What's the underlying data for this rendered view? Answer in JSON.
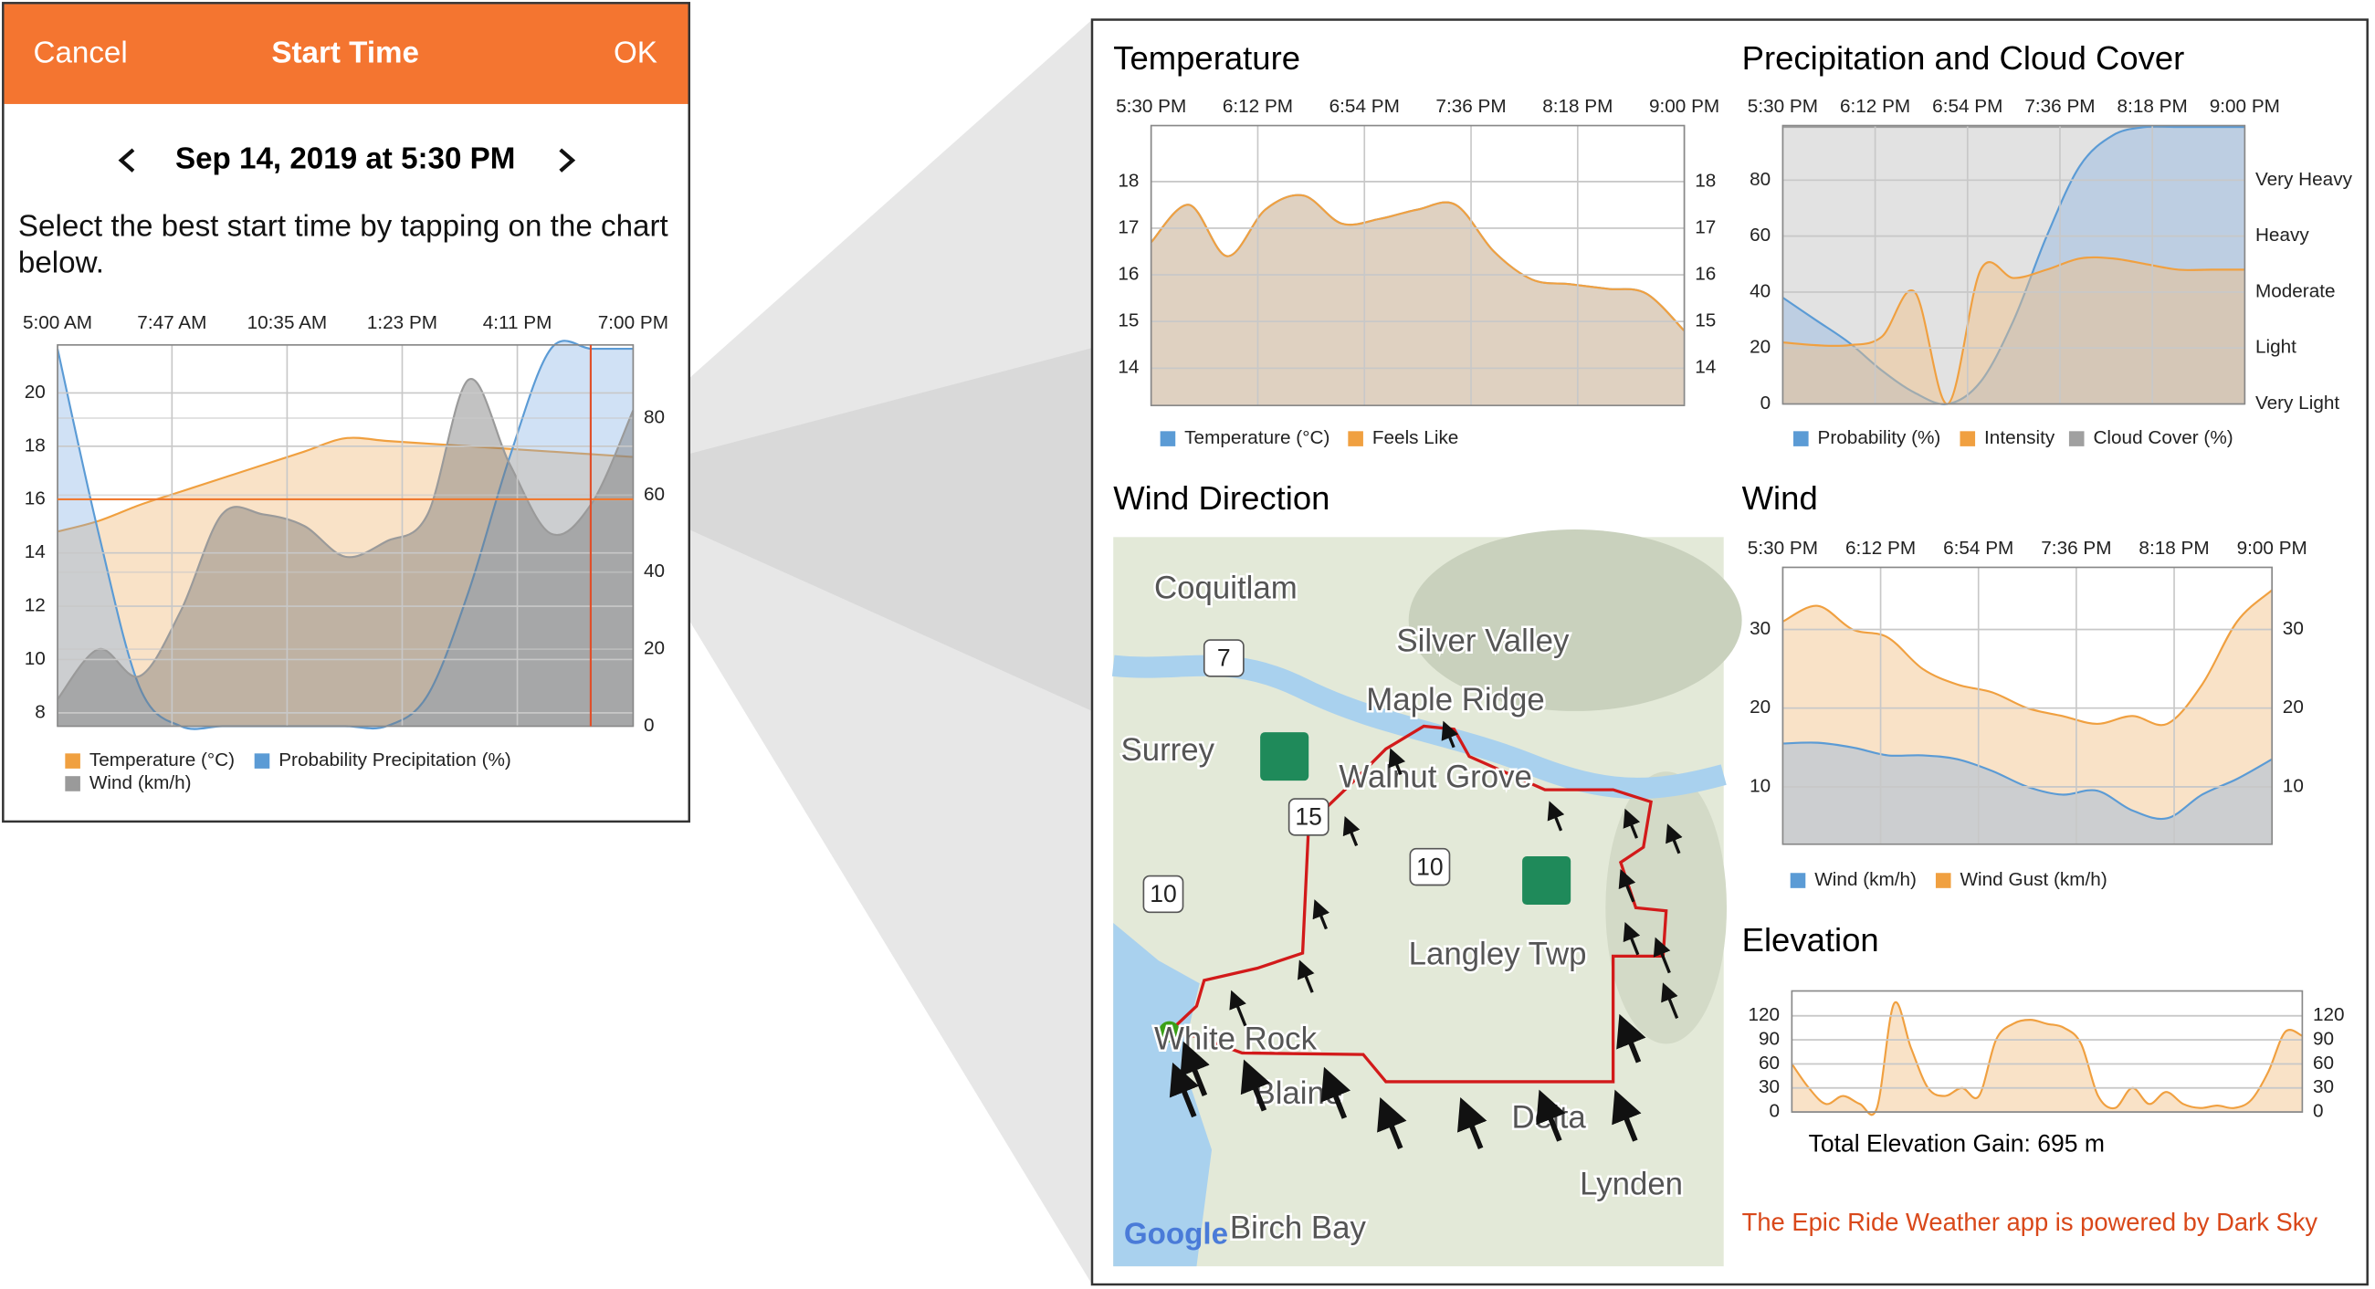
{
  "start_time_panel": {
    "header": {
      "cancel": "Cancel",
      "title": "Start Time",
      "ok": "OK"
    },
    "date": "Sep 14, 2019 at 5:30 PM",
    "instruction": "Select the best start time by tapping on the chart below."
  },
  "chart_data": [
    {
      "type": "area",
      "x": [
        5,
        6,
        7,
        8,
        9,
        10,
        11,
        12,
        13,
        14,
        15,
        16,
        17,
        18,
        19
      ],
      "xlim": [
        5,
        19
      ],
      "xticks": [
        {
          "value": 5,
          "label": "5:00 AM"
        },
        {
          "value": 7.783,
          "label": "7:47 AM"
        },
        {
          "value": 10.583,
          "label": "10:35 AM"
        },
        {
          "value": 13.383,
          "label": "1:23 PM"
        },
        {
          "value": 16.183,
          "label": "4:11 PM"
        },
        {
          "value": 19,
          "label": "7:00 PM"
        }
      ],
      "ylim": [
        7.5,
        21.8
      ],
      "yticks": [
        8,
        10,
        12,
        14,
        16,
        18,
        20
      ],
      "y2lim": [
        0,
        99
      ],
      "y2ticks": [
        0,
        20,
        40,
        60,
        80
      ],
      "grid": true,
      "series": [
        {
          "name": "Temperature (°C)",
          "color": "#f0a040",
          "values": [
            14.8,
            15.2,
            15.8,
            16.3,
            16.8,
            17.3,
            17.8,
            18.3,
            18.2,
            18.1,
            18.0,
            17.9,
            17.8,
            17.7,
            17.6
          ]
        },
        {
          "name": "Probability Precipitation (%)",
          "color": "#5b9bd5",
          "axis": "y2",
          "values": [
            98,
            50,
            10,
            0,
            0,
            0,
            0,
            0,
            0,
            8,
            35,
            70,
            98,
            98,
            98
          ]
        },
        {
          "name": "Wind (km/h)",
          "color": "#9a9a9a",
          "axis": "y2",
          "values": [
            7,
            20,
            13,
            30,
            55,
            55,
            52,
            44,
            48,
            55,
            90,
            68,
            50,
            58,
            82
          ]
        }
      ]
    },
    {
      "type": "area",
      "title": "Temperature",
      "x": [
        17.5,
        17.75,
        18,
        18.25,
        18.5,
        18.75,
        19,
        19.25,
        19.5,
        19.75,
        20,
        20.25,
        20.5,
        20.75,
        21
      ],
      "xlim": [
        17.5,
        21
      ],
      "xticks": [
        {
          "value": 17.5,
          "label": "5:30 PM"
        },
        {
          "value": 18.2,
          "label": "6:12 PM"
        },
        {
          "value": 18.9,
          "label": "6:54 PM"
        },
        {
          "value": 19.6,
          "label": "7:36 PM"
        },
        {
          "value": 20.3,
          "label": "8:18 PM"
        },
        {
          "value": 21,
          "label": "9:00 PM"
        }
      ],
      "ylim": [
        13.2,
        19.2
      ],
      "yticks": [
        14,
        15,
        16,
        17,
        18
      ],
      "y2lim": [
        13.2,
        19.2
      ],
      "y2ticks": [
        14,
        15,
        16,
        17,
        18
      ],
      "grid": true,
      "series": [
        {
          "name": "Temperature (°C)",
          "color": "#5b9bd5",
          "values": [
            16.7,
            17.5,
            16.4,
            17.4,
            17.7,
            17.1,
            17.2,
            17.4,
            17.5,
            16.5,
            15.9,
            15.8,
            15.7,
            15.6,
            14.8
          ]
        },
        {
          "name": "Feels Like",
          "color": "#f0a040",
          "values": [
            16.7,
            17.5,
            16.4,
            17.4,
            17.7,
            17.1,
            17.2,
            17.4,
            17.5,
            16.5,
            15.9,
            15.8,
            15.7,
            15.6,
            14.8
          ]
        }
      ]
    },
    {
      "type": "area",
      "title": "Precipitation and Cloud Cover",
      "x": [
        17.5,
        17.75,
        18,
        18.25,
        18.5,
        18.75,
        19,
        19.25,
        19.5,
        19.75,
        20,
        20.25,
        20.5,
        20.75,
        21
      ],
      "xlim": [
        17.5,
        21
      ],
      "xticks": [
        {
          "value": 17.5,
          "label": "5:30 PM"
        },
        {
          "value": 18.2,
          "label": "6:12 PM"
        },
        {
          "value": 18.9,
          "label": "6:54 PM"
        },
        {
          "value": 19.6,
          "label": "7:36 PM"
        },
        {
          "value": 20.3,
          "label": "8:18 PM"
        },
        {
          "value": 21,
          "label": "9:00 PM"
        }
      ],
      "ylim": [
        0,
        99.5
      ],
      "yticks": [
        0,
        20,
        40,
        60,
        80
      ],
      "y2lim": [
        0,
        99.5
      ],
      "y2ticks": [
        {
          "value": 0,
          "label": "Very Light"
        },
        {
          "value": 20,
          "label": "Light"
        },
        {
          "value": 40,
          "label": "Moderate"
        },
        {
          "value": 60,
          "label": "Heavy"
        },
        {
          "value": 80,
          "label": "Very Heavy"
        }
      ],
      "grid": true,
      "series": [
        {
          "name": "Probability (%)",
          "color": "#5b9bd5",
          "values": [
            38,
            30,
            22,
            12,
            4,
            0,
            8,
            30,
            60,
            85,
            96,
            99,
            99,
            99,
            99
          ]
        },
        {
          "name": "Intensity",
          "color": "#f0a040",
          "axis": "y2",
          "values": [
            22,
            21,
            21,
            24,
            40,
            0,
            48,
            45,
            48,
            52,
            52,
            50,
            48,
            48,
            48
          ]
        },
        {
          "name": "Cloud Cover (%)",
          "color": "#a0a0a0",
          "values": [
            99,
            99,
            99,
            99,
            99,
            99,
            99,
            99,
            99,
            99,
            99,
            99,
            99,
            99,
            99
          ]
        }
      ]
    },
    {
      "type": "area",
      "title": "Wind",
      "x": [
        17.5,
        17.75,
        18,
        18.25,
        18.5,
        18.75,
        19,
        19.25,
        19.5,
        19.75,
        20,
        20.25,
        20.5,
        20.75,
        21
      ],
      "xlim": [
        17.5,
        21
      ],
      "xticks": [
        {
          "value": 17.5,
          "label": "5:30 PM"
        },
        {
          "value": 18.2,
          "label": "6:12 PM"
        },
        {
          "value": 18.9,
          "label": "6:54 PM"
        },
        {
          "value": 19.6,
          "label": "7:36 PM"
        },
        {
          "value": 20.3,
          "label": "8:18 PM"
        },
        {
          "value": 21,
          "label": "9:00 PM"
        }
      ],
      "ylim": [
        2.7,
        37.9
      ],
      "yticks": [
        10,
        20,
        30
      ],
      "y2lim": [
        2.7,
        37.9
      ],
      "y2ticks": [
        10,
        20,
        30
      ],
      "grid": true,
      "series": [
        {
          "name": "Wind (km/h)",
          "color": "#5b9bd5",
          "values": [
            15.5,
            15.6,
            15,
            14,
            14,
            13.5,
            12,
            10,
            9,
            9.5,
            7,
            6,
            9,
            11,
            13.5
          ]
        },
        {
          "name": "Wind Gust (km/h)",
          "color": "#f0a040",
          "values": [
            31,
            33,
            30,
            29,
            25,
            23,
            22,
            20,
            19,
            18,
            19,
            18,
            23,
            31,
            35
          ]
        }
      ]
    },
    {
      "type": "area",
      "title": "Elevation",
      "ylim": [
        0,
        151
      ],
      "yticks": [
        0,
        30,
        60,
        90,
        120
      ],
      "y2lim": [
        0,
        151
      ],
      "y2ticks": [
        0,
        30,
        60,
        90,
        120
      ],
      "grid": true,
      "color": "#f0a040",
      "values": [
        60,
        30,
        10,
        20,
        10,
        5,
        135,
        80,
        30,
        20,
        30,
        20,
        90,
        110,
        115,
        110,
        105,
        85,
        20,
        5,
        30,
        10,
        25,
        10,
        5,
        8,
        5,
        15,
        50,
        100,
        95
      ],
      "annotation": "Total Elevation Gain: 695 m"
    }
  ],
  "wind_direction": {
    "title": "Wind Direction",
    "labels": [
      "Coquitlam",
      "Silver Valley",
      "Maple Ridge",
      "Surrey",
      "Walnut Grove",
      "Langley Twp",
      "White Rock",
      "Blaine",
      "Delta",
      "Lynden",
      "Birch Bay"
    ],
    "route_shields": [
      "7",
      "15",
      "10",
      "10"
    ],
    "attribution": "Google"
  },
  "footer": "The Epic Ride Weather app is powered by Dark Sky"
}
